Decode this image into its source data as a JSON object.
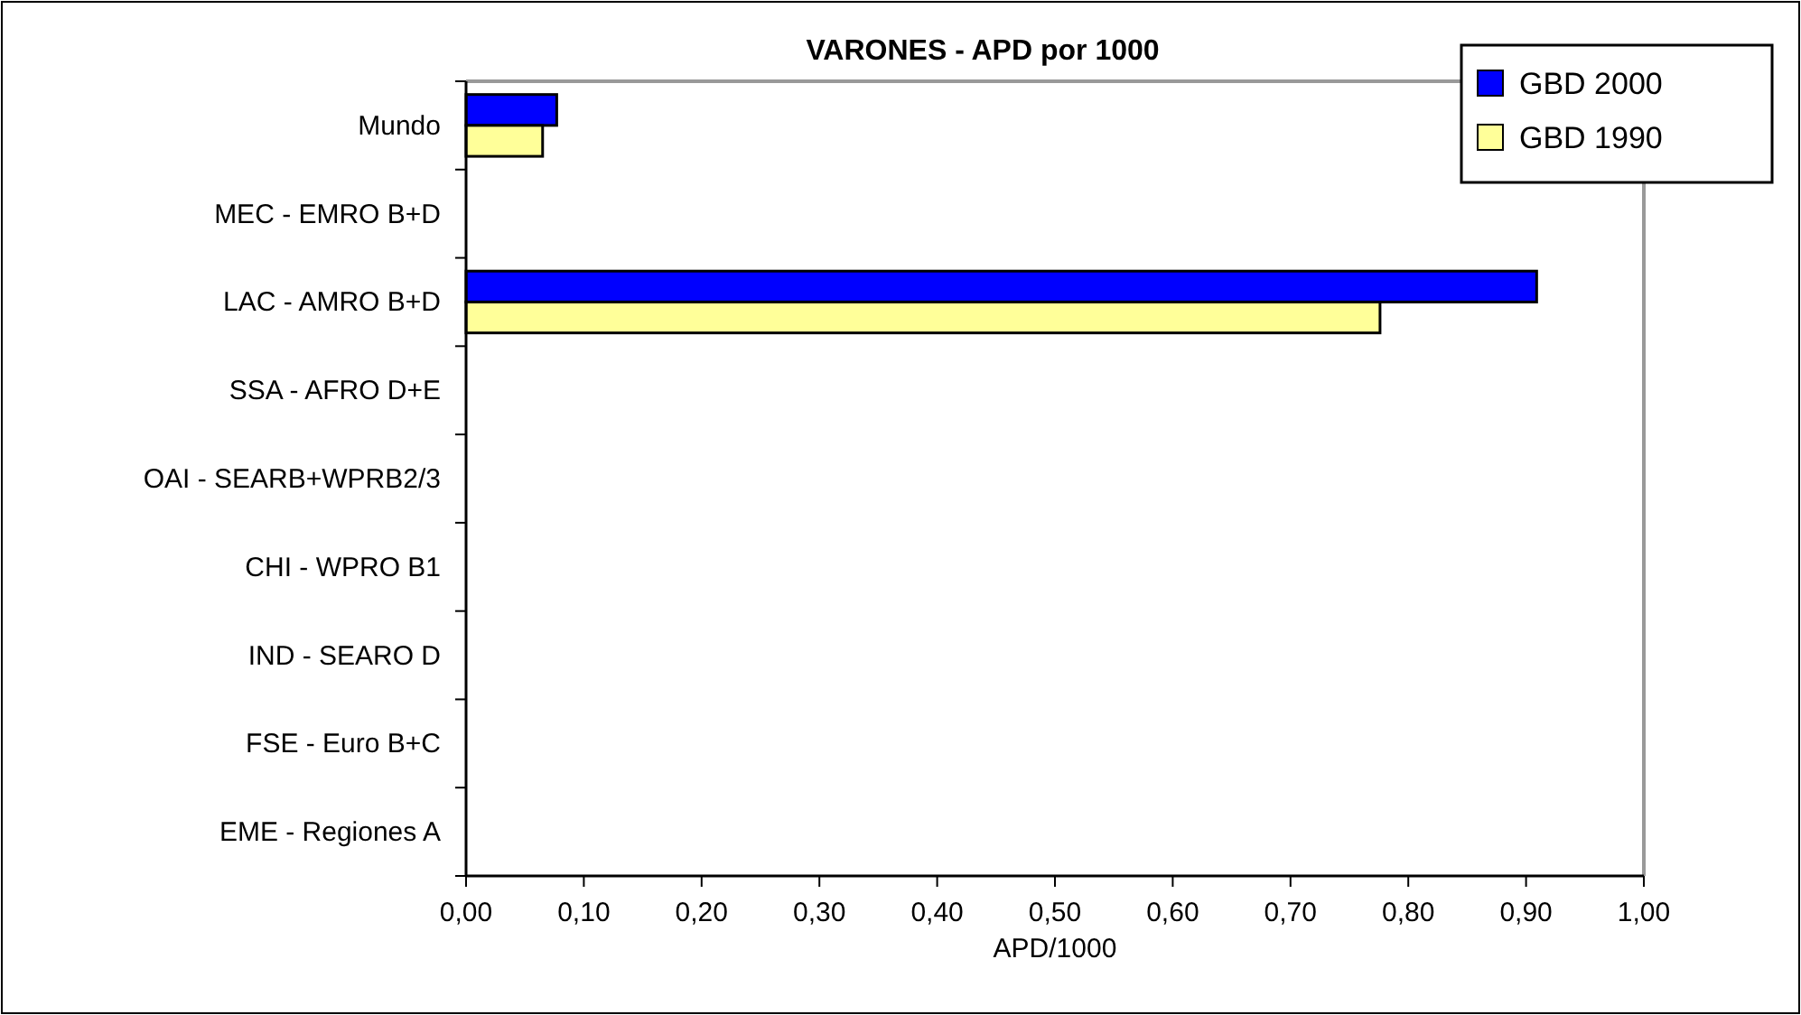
{
  "chart_data": {
    "type": "bar",
    "orientation": "horizontal",
    "title": "VARONES - APD por 1000",
    "xlabel": "APD/1000",
    "categories": [
      "Mundo",
      "MEC - EMRO B+D",
      "LAC - AMRO B+D",
      "SSA - AFRO D+E",
      "OAI - SEARB+WPRB2/3",
      "CHI - WPRO B1",
      "IND - SEARO D",
      "FSE - Euro B+C",
      "EME - Regiones A"
    ],
    "series": [
      {
        "name": "GBD 2000",
        "color": "#0000ff",
        "values": [
          0.077,
          null,
          0.909,
          null,
          null,
          null,
          null,
          null,
          null
        ]
      },
      {
        "name": "GBD 1990",
        "color": "#ffff99",
        "values": [
          0.065,
          null,
          0.776,
          null,
          null,
          null,
          null,
          null,
          null
        ]
      }
    ],
    "xlim": [
      0,
      1
    ],
    "xticks": [
      {
        "value": 0,
        "label": "0,00"
      },
      {
        "value": 0.1,
        "label": "0,10"
      },
      {
        "value": 0.2,
        "label": "0,20"
      },
      {
        "value": 0.3,
        "label": "0,30"
      },
      {
        "value": 0.4,
        "label": "0,40"
      },
      {
        "value": 0.5,
        "label": "0,50"
      },
      {
        "value": 0.6,
        "label": "0,60"
      },
      {
        "value": 0.7,
        "label": "0,70"
      },
      {
        "value": 0.8,
        "label": "0,80"
      },
      {
        "value": 0.9,
        "label": "0,90"
      },
      {
        "value": 1,
        "label": "1,00"
      }
    ],
    "grid": false,
    "legend": "top right"
  }
}
